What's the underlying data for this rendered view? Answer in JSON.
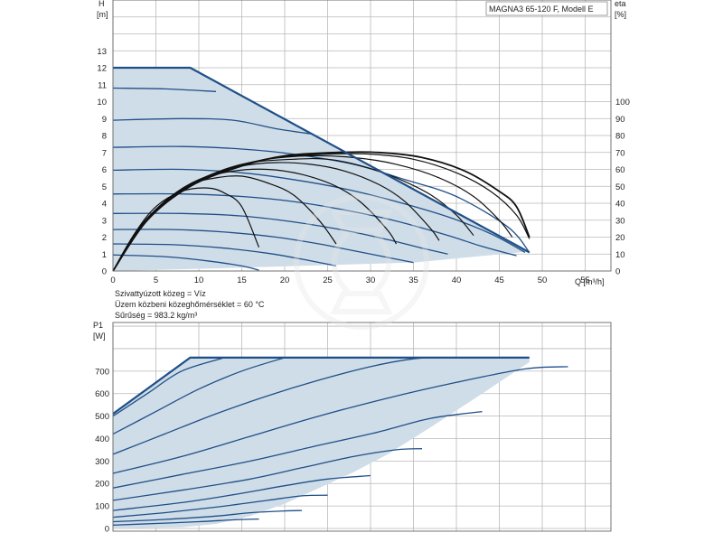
{
  "title": "MAGNA3 65-120 F, Modell E",
  "fluid_lines": [
    "Szivattyúzott közeg = Víz",
    "Üzem közbeni közeghőmérséklet = 60 °C",
    "Sűrűség = 983.2 kg/m³"
  ],
  "colors": {
    "envelope_fill": "#cfdde8",
    "curve": "#1f4f88",
    "efficiency": "#111111",
    "grid": "#b9b9b9"
  },
  "chart_data": [
    {
      "type": "line",
      "ylabel": "H",
      "yunit": "[m]",
      "y2label": "eta",
      "y2unit": "[%]",
      "xlabel": "Q [m³/h]",
      "xlim": [
        0,
        58
      ],
      "ylim": [
        0,
        16
      ],
      "y2lim": [
        0,
        160
      ],
      "xticks": [
        0,
        5,
        10,
        15,
        20,
        25,
        30,
        35,
        40,
        45,
        50,
        55
      ],
      "yticks": [
        0,
        1,
        2,
        3,
        4,
        5,
        6,
        7,
        8,
        9,
        10,
        11,
        12,
        13
      ],
      "y2ticks": [
        0,
        10,
        20,
        30,
        40,
        50,
        60,
        70,
        80,
        90,
        100
      ],
      "grid": true,
      "envelope": [
        [
          0,
          0
        ],
        [
          0,
          12
        ],
        [
          9,
          12
        ],
        [
          48.5,
          1.1
        ],
        [
          48.5,
          1.15
        ],
        [
          35,
          0.5
        ],
        [
          15,
          0.2
        ],
        [
          0,
          0
        ]
      ],
      "outline": [
        [
          0,
          12
        ],
        [
          9,
          12
        ],
        [
          48.5,
          1.1
        ]
      ],
      "head_curves": [
        {
          "points": [
            [
              0,
              10.8
            ],
            [
              6,
              10.75
            ],
            [
              12,
              10.6
            ]
          ]
        },
        {
          "points": [
            [
              0,
              8.9
            ],
            [
              8,
              9
            ],
            [
              14,
              8.9
            ],
            [
              19,
              8.4
            ],
            [
              23,
              8.1
            ]
          ]
        },
        {
          "points": [
            [
              0,
              7.3
            ],
            [
              8,
              7.35
            ],
            [
              15,
              7.2
            ],
            [
              21,
              6.9
            ],
            [
              28,
              6.3
            ],
            [
              34,
              5.4
            ],
            [
              40,
              4.4
            ],
            [
              46,
              2.6
            ],
            [
              48.5,
              1.1
            ]
          ]
        },
        {
          "points": [
            [
              0,
              5.95
            ],
            [
              8,
              6.0
            ],
            [
              15,
              5.8
            ],
            [
              21,
              5.4
            ],
            [
              27,
              4.85
            ],
            [
              33,
              4.1
            ],
            [
              39,
              3.2
            ],
            [
              44,
              2.2
            ],
            [
              48,
              1.1
            ]
          ]
        },
        {
          "points": [
            [
              0,
              4.55
            ],
            [
              8,
              4.55
            ],
            [
              15,
              4.4
            ],
            [
              21,
              4.1
            ],
            [
              27,
              3.6
            ],
            [
              33,
              2.95
            ],
            [
              39,
              2.1
            ],
            [
              43,
              1.45
            ],
            [
              47,
              0.9
            ]
          ]
        },
        {
          "points": [
            [
              0,
              3.4
            ],
            [
              8,
              3.4
            ],
            [
              15,
              3.25
            ],
            [
              21,
              2.9
            ],
            [
              27,
              2.4
            ],
            [
              32,
              1.85
            ],
            [
              36,
              1.35
            ],
            [
              39,
              1.0
            ]
          ]
        },
        {
          "points": [
            [
              0,
              2.45
            ],
            [
              7,
              2.45
            ],
            [
              13,
              2.3
            ],
            [
              19,
              2.0
            ],
            [
              24,
              1.6
            ],
            [
              28,
              1.2
            ],
            [
              32,
              0.8
            ],
            [
              35,
              0.5
            ]
          ]
        },
        {
          "points": [
            [
              0,
              1.6
            ],
            [
              7,
              1.55
            ],
            [
              13,
              1.35
            ],
            [
              18,
              1.05
            ],
            [
              22,
              0.7
            ],
            [
              26,
              0.3
            ]
          ]
        },
        {
          "points": [
            [
              0,
              0.95
            ],
            [
              6,
              0.85
            ],
            [
              11,
              0.6
            ],
            [
              15,
              0.3
            ],
            [
              17,
              0.05
            ]
          ]
        }
      ],
      "eta_curves": [
        {
          "points": [
            [
              0,
              0
            ],
            [
              2.5,
              22
            ],
            [
              5,
              38
            ],
            [
              8,
              47
            ],
            [
              11,
              49
            ],
            [
              13,
              46
            ],
            [
              15,
              38
            ],
            [
              17,
              14
            ]
          ]
        },
        {
          "points": [
            [
              0,
              0
            ],
            [
              2.8,
              24
            ],
            [
              6,
              41
            ],
            [
              9,
              51
            ],
            [
              12,
              55
            ],
            [
              15,
              56
            ],
            [
              18,
              52
            ],
            [
              21,
              45
            ],
            [
              24,
              30
            ],
            [
              26,
              16
            ]
          ]
        },
        {
          "points": [
            [
              0,
              0
            ],
            [
              3,
              25
            ],
            [
              6.5,
              43
            ],
            [
              10,
              54
            ],
            [
              14,
              59
            ],
            [
              18,
              60
            ],
            [
              22,
              57
            ],
            [
              26,
              50
            ],
            [
              29,
              40
            ],
            [
              32,
              24
            ],
            [
              33,
              16
            ]
          ]
        },
        {
          "points": [
            [
              0,
              0
            ],
            [
              3.2,
              26
            ],
            [
              7,
              45
            ],
            [
              11,
              56
            ],
            [
              15,
              62
            ],
            [
              19,
              64
            ],
            [
              23,
              63
            ],
            [
              27,
              59
            ],
            [
              31,
              51
            ],
            [
              34,
              41
            ],
            [
              37,
              25
            ],
            [
              38,
              18
            ]
          ]
        },
        {
          "points": [
            [
              0,
              0
            ],
            [
              3.4,
              27
            ],
            [
              7.5,
              46
            ],
            [
              12,
              58
            ],
            [
              16,
              64
            ],
            [
              21,
              66
            ],
            [
              25,
              66
            ],
            [
              29,
              62
            ],
            [
              33,
              55
            ],
            [
              37,
              45
            ],
            [
              40,
              33
            ],
            [
              42,
              21
            ]
          ]
        },
        {
          "points": [
            [
              0,
              0
            ],
            [
              3.6,
              28
            ],
            [
              8,
              48
            ],
            [
              13,
              60
            ],
            [
              18,
              66
            ],
            [
              23,
              68
            ],
            [
              28,
              67
            ],
            [
              33,
              63
            ],
            [
              38,
              55
            ],
            [
              42,
              44
            ],
            [
              45,
              30
            ],
            [
              46.5,
              20
            ]
          ]
        },
        {
          "points": [
            [
              0,
              0
            ],
            [
              3.8,
              29
            ],
            [
              8.5,
              49
            ],
            [
              14,
              61
            ],
            [
              19,
              67
            ],
            [
              25,
              69
            ],
            [
              30,
              69
            ],
            [
              35,
              66
            ],
            [
              40,
              58
            ],
            [
              44,
              47
            ],
            [
              47,
              33
            ],
            [
              48.5,
              19
            ]
          ]
        }
      ],
      "eta_max_curve": {
        "points": [
          [
            0,
            0
          ],
          [
            4,
            30
          ],
          [
            9,
            50
          ],
          [
            15,
            62
          ],
          [
            20,
            68
          ],
          [
            26,
            70
          ],
          [
            31,
            70
          ],
          [
            36,
            67
          ],
          [
            41,
            59
          ],
          [
            45,
            47
          ],
          [
            47,
            38
          ],
          [
            48.5,
            20
          ]
        ]
      }
    },
    {
      "type": "line",
      "ylabel": "P1",
      "yunit": "[W]",
      "xlim": [
        0,
        58
      ],
      "ylim": [
        0,
        850
      ],
      "yticks": [
        0,
        100,
        200,
        300,
        400,
        500,
        600,
        700
      ],
      "grid": true,
      "envelope": [
        [
          0,
          510
        ],
        [
          9,
          760
        ],
        [
          48.5,
          760
        ],
        [
          48.5,
          740
        ],
        [
          43,
          600
        ],
        [
          37,
          450
        ],
        [
          32,
          330
        ],
        [
          28,
          250
        ],
        [
          24,
          180
        ],
        [
          20,
          110
        ],
        [
          16,
          55
        ],
        [
          12,
          20
        ],
        [
          8,
          5
        ],
        [
          0,
          0
        ]
      ],
      "outline": [
        [
          0,
          510
        ],
        [
          9,
          760
        ],
        [
          48.5,
          760
        ]
      ],
      "power_curves": [
        {
          "points": [
            [
              0,
              500
            ],
            [
              4,
              600
            ],
            [
              8,
              700
            ],
            [
              13,
              760
            ]
          ]
        },
        {
          "points": [
            [
              0,
              420
            ],
            [
              5,
              520
            ],
            [
              10,
              620
            ],
            [
              15,
              700
            ],
            [
              20,
              760
            ]
          ]
        },
        {
          "points": [
            [
              0,
              330
            ],
            [
              6,
              420
            ],
            [
              12,
              510
            ],
            [
              18,
              590
            ],
            [
              24,
              660
            ],
            [
              30,
              720
            ],
            [
              35,
              755
            ],
            [
              38,
              760
            ]
          ]
        },
        {
          "points": [
            [
              0,
              245
            ],
            [
              8,
              320
            ],
            [
              16,
              410
            ],
            [
              24,
              500
            ],
            [
              32,
              580
            ],
            [
              40,
              650
            ],
            [
              48,
              710
            ],
            [
              53,
              720
            ]
          ]
        },
        {
          "points": [
            [
              0,
              180
            ],
            [
              8,
              240
            ],
            [
              16,
              300
            ],
            [
              24,
              370
            ],
            [
              31,
              430
            ],
            [
              37,
              490
            ],
            [
              43,
              520
            ]
          ]
        },
        {
          "points": [
            [
              0,
              125
            ],
            [
              8,
              170
            ],
            [
              16,
              220
            ],
            [
              22,
              270
            ],
            [
              28,
              320
            ],
            [
              33,
              350
            ],
            [
              36,
              355
            ]
          ]
        },
        {
          "points": [
            [
              0,
              80
            ],
            [
              8,
              115
            ],
            [
              14,
              150
            ],
            [
              20,
              190
            ],
            [
              25,
              220
            ],
            [
              30,
              235
            ]
          ]
        },
        {
          "points": [
            [
              0,
              50
            ],
            [
              6,
              70
            ],
            [
              12,
              95
            ],
            [
              18,
              125
            ],
            [
              22,
              145
            ],
            [
              25,
              148
            ]
          ]
        },
        {
          "points": [
            [
              0,
              30
            ],
            [
              6,
              40
            ],
            [
              12,
              55
            ],
            [
              16,
              70
            ],
            [
              20,
              78
            ],
            [
              22,
              80
            ]
          ]
        },
        {
          "points": [
            [
              0,
              15
            ],
            [
              5,
              22
            ],
            [
              10,
              30
            ],
            [
              14,
              38
            ],
            [
              17,
              42
            ]
          ]
        }
      ]
    }
  ]
}
